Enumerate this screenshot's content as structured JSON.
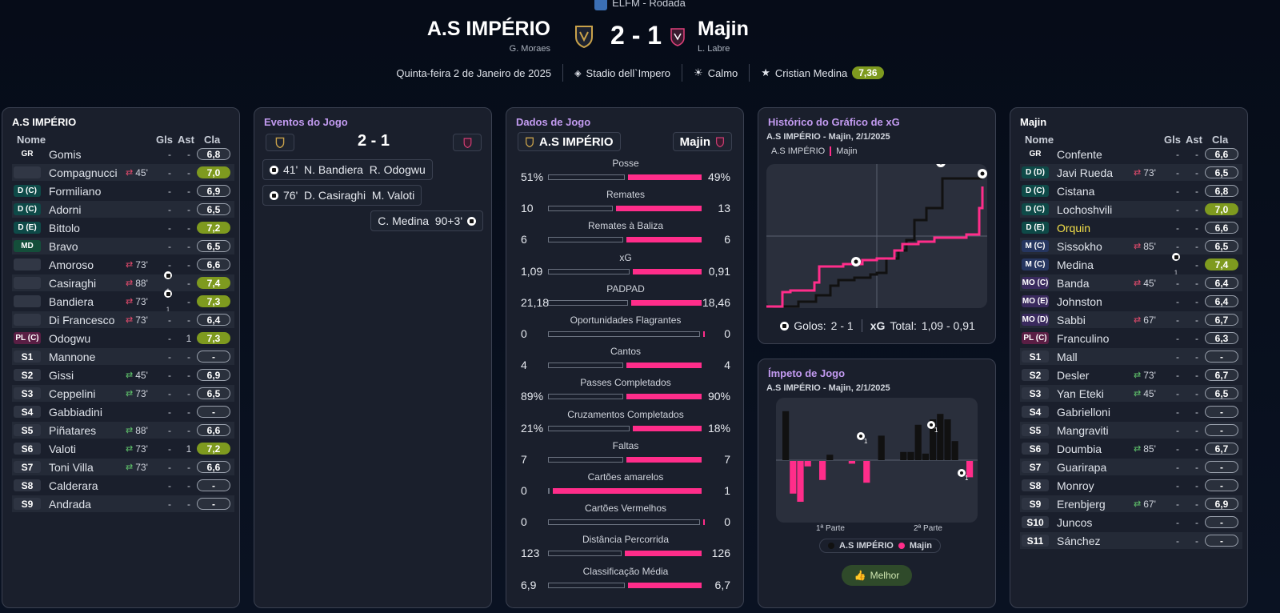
{
  "header": {
    "competition": "ELFM - Rodada",
    "home": {
      "name": "A.S IMPÉRIO",
      "manager": "G. Moraes"
    },
    "away": {
      "name": "Majin",
      "manager": "L. Labre"
    },
    "score": "2 - 1",
    "date": "Quinta-feira 2 de Janeiro de 2025",
    "stadium": "Stadio dell`Impero",
    "weather": "Calmo",
    "motm": "Cristian Medina",
    "motm_rating": "7,36"
  },
  "left": {
    "title": "A.S IMPÉRIO",
    "cols": {
      "name": "Nome",
      "gls": "Gls",
      "ast": "Ast",
      "cla": "Cla"
    },
    "rows": [
      {
        "pos": "GR",
        "name": "Gomis",
        "sub": "",
        "gls": "-",
        "ast": "-",
        "rating": "6,8",
        "g": false,
        "hl": false
      },
      {
        "pos": "",
        "name": "Compagnucci",
        "sub": "45'",
        "gls": "-",
        "ast": "-",
        "rating": "7,0",
        "g": true,
        "hl": false
      },
      {
        "pos": "D (C)",
        "name": "Formiliano",
        "sub": "",
        "gls": "-",
        "ast": "-",
        "rating": "6,9",
        "g": false,
        "hl": false
      },
      {
        "pos": "D (C)",
        "name": "Adorni",
        "sub": "",
        "gls": "-",
        "ast": "-",
        "rating": "6,5",
        "g": false,
        "hl": false
      },
      {
        "pos": "D (E)",
        "name": "Bittolo",
        "sub": "",
        "gls": "-",
        "ast": "-",
        "rating": "7,2",
        "g": true,
        "hl": false
      },
      {
        "pos": "MD",
        "name": "Bravo",
        "sub": "",
        "gls": "-",
        "ast": "-",
        "rating": "6,5",
        "g": false,
        "hl": false
      },
      {
        "pos": "",
        "name": "Amoroso",
        "sub": "73'",
        "gls": "-",
        "ast": "-",
        "rating": "6,6",
        "g": false,
        "hl": false
      },
      {
        "pos": "",
        "name": "Casiraghi",
        "sub": "88'",
        "gls": "1",
        "ast": "-",
        "rating": "7,4",
        "g": true,
        "hl": false
      },
      {
        "pos": "",
        "name": "Bandiera",
        "sub": "73'",
        "gls": "1",
        "ast": "-",
        "rating": "7,3",
        "g": true,
        "hl": false
      },
      {
        "pos": "",
        "name": "Di Francesco",
        "sub": "73'",
        "gls": "-",
        "ast": "-",
        "rating": "6,4",
        "g": false,
        "hl": false
      },
      {
        "pos": "PL (C)",
        "name": "Odogwu",
        "sub": "",
        "gls": "-",
        "ast": "1",
        "rating": "7,3",
        "g": true,
        "hl": false
      },
      {
        "pos": "S1",
        "name": "Mannone",
        "sub": "",
        "gls": "-",
        "ast": "-",
        "rating": "-",
        "g": false,
        "hl": false
      },
      {
        "pos": "S2",
        "name": "Gissi",
        "sub": "45'",
        "gls": "-",
        "ast": "-",
        "rating": "6,9",
        "g": false,
        "hl": false
      },
      {
        "pos": "S3",
        "name": "Ceppelini",
        "sub": "73'",
        "gls": "-",
        "ast": "-",
        "rating": "6,5",
        "g": false,
        "hl": false
      },
      {
        "pos": "S4",
        "name": "Gabbiadini",
        "sub": "",
        "gls": "-",
        "ast": "-",
        "rating": "-",
        "g": false,
        "hl": false
      },
      {
        "pos": "S5",
        "name": "Piñatares",
        "sub": "88'",
        "gls": "-",
        "ast": "-",
        "rating": "6,6",
        "g": false,
        "hl": false
      },
      {
        "pos": "S6",
        "name": "Valoti",
        "sub": "73'",
        "gls": "-",
        "ast": "1",
        "rating": "7,2",
        "g": true,
        "hl": false
      },
      {
        "pos": "S7",
        "name": "Toni Villa",
        "sub": "73'",
        "gls": "-",
        "ast": "-",
        "rating": "6,6",
        "g": false,
        "hl": false
      },
      {
        "pos": "S8",
        "name": "Calderara",
        "sub": "",
        "gls": "-",
        "ast": "-",
        "rating": "-",
        "g": false,
        "hl": false
      },
      {
        "pos": "S9",
        "name": "Andrada",
        "sub": "",
        "gls": "-",
        "ast": "-",
        "rating": "-",
        "g": false,
        "hl": false
      }
    ]
  },
  "events": {
    "title": "Eventos do Jogo",
    "score": "2 - 1",
    "list": [
      {
        "text": "41'  N. Bandiera  R. Odogwu",
        "side": "home"
      },
      {
        "text": "76'  D. Casiraghi  M. Valoti",
        "side": "home"
      },
      {
        "text": "C. Medina  90+3'",
        "side": "away"
      }
    ]
  },
  "stats": {
    "title": "Dados de Jogo",
    "home": "A.S IMPÉRIO",
    "away": "Majin",
    "rows": [
      {
        "name": "Posse",
        "l": "51%",
        "r": "49%",
        "lw": 51,
        "rw": 49
      },
      {
        "name": "Remates",
        "l": "10",
        "r": "13",
        "lw": 43,
        "rw": 57
      },
      {
        "name": "Remates à Baliza",
        "l": "6",
        "r": "6",
        "lw": 50,
        "rw": 50
      },
      {
        "name": "xG",
        "l": "1,09",
        "r": "0,91",
        "lw": 54,
        "rw": 46
      },
      {
        "name": "PADPAD",
        "l": "21,18",
        "r": "18,46",
        "lw": 53,
        "rw": 47
      },
      {
        "name": "Oportunidades Flagrantes",
        "l": "0",
        "r": "0",
        "lw": 100,
        "rw": 1
      },
      {
        "name": "Cantos",
        "l": "4",
        "r": "4",
        "lw": 50,
        "rw": 50
      },
      {
        "name": "Passes Completados",
        "l": "89%",
        "r": "90%",
        "lw": 50,
        "rw": 50
      },
      {
        "name": "Cruzamentos Completados",
        "l": "21%",
        "r": "18%",
        "lw": 54,
        "rw": 46
      },
      {
        "name": "Faltas",
        "l": "7",
        "r": "7",
        "lw": 50,
        "rw": 50
      },
      {
        "name": "Cartões amarelos",
        "l": "0",
        "r": "1",
        "lw": 2,
        "rw": 98
      },
      {
        "name": "Cartões Vermelhos",
        "l": "0",
        "r": "0",
        "lw": 100,
        "rw": 1
      },
      {
        "name": "Distância Percorrida",
        "l": "123",
        "r": "126",
        "lw": 49,
        "rw": 51
      },
      {
        "name": "Classificação Média",
        "l": "6,9",
        "r": "6,7",
        "lw": 51,
        "rw": 49
      }
    ]
  },
  "xg": {
    "title": "Histórico do Gráfico de xG",
    "subtitle": "A.S IMPÉRIO - Majin, 2/1/2025",
    "legend_home": "A.S IMPÉRIO",
    "legend_away": "Majin",
    "footer_goals_label": "Golos:",
    "footer_goals": "2 - 1",
    "footer_xg_label": "xG",
    "footer_total_label": "Total:",
    "footer_xg": "1,09  -  0,91"
  },
  "momentum": {
    "title": "Ímpeto de Jogo",
    "subtitle": "A.S IMPÉRIO - Majin, 2/1/2025",
    "half1": "1ª Parte",
    "half2": "2ª Parte",
    "legend_home": "A.S IMPÉRIO",
    "legend_away": "Majin",
    "button": "Melhor",
    "home_values": [
      0.9,
      0,
      0,
      0,
      0,
      0,
      0.1,
      0,
      0,
      0,
      0,
      0,
      0,
      0.45,
      0,
      0,
      0.15,
      0.15,
      0.65,
      0.12,
      0.75,
      0.85,
      0.75,
      0.35,
      0,
      0
    ],
    "away_values": [
      0,
      0.6,
      0.75,
      0.1,
      0,
      0.35,
      0,
      0,
      0,
      0.05,
      0,
      0.4,
      0,
      0,
      0,
      0,
      0,
      0,
      0,
      0,
      0,
      0,
      0,
      0,
      0,
      0.3
    ]
  },
  "right": {
    "title": "Majin",
    "cols": {
      "name": "Nome",
      "gls": "Gls",
      "ast": "Ast",
      "cla": "Cla"
    },
    "rows": [
      {
        "pos": "GR",
        "name": "Confente",
        "sub": "",
        "gls": "-",
        "ast": "-",
        "rating": "6,6",
        "g": false,
        "hl": false
      },
      {
        "pos": "D (D)",
        "name": "Javi Rueda",
        "sub": "73'",
        "gls": "-",
        "ast": "-",
        "rating": "6,5",
        "g": false,
        "hl": false
      },
      {
        "pos": "D (C)",
        "name": "Cistana",
        "sub": "",
        "gls": "-",
        "ast": "-",
        "rating": "6,8",
        "g": false,
        "hl": false
      },
      {
        "pos": "D (C)",
        "name": "Lochoshvili",
        "sub": "",
        "gls": "-",
        "ast": "-",
        "rating": "7,0",
        "g": true,
        "hl": false
      },
      {
        "pos": "D (E)",
        "name": "Orquin",
        "sub": "",
        "gls": "-",
        "ast": "-",
        "rating": "6,6",
        "g": false,
        "hl": true
      },
      {
        "pos": "M (C)",
        "name": "Sissokho",
        "sub": "85'",
        "gls": "-",
        "ast": "-",
        "rating": "6,5",
        "g": false,
        "hl": false
      },
      {
        "pos": "M (C)",
        "name": "Medina",
        "sub": "",
        "gls": "1",
        "ast": "-",
        "rating": "7,4",
        "g": true,
        "hl": false
      },
      {
        "pos": "MO (C)",
        "name": "Banda",
        "sub": "45'",
        "gls": "-",
        "ast": "-",
        "rating": "6,4",
        "g": false,
        "hl": false
      },
      {
        "pos": "MO (E)",
        "name": "Johnston",
        "sub": "",
        "gls": "-",
        "ast": "-",
        "rating": "6,4",
        "g": false,
        "hl": false
      },
      {
        "pos": "MO (D)",
        "name": "Sabbi",
        "sub": "67'",
        "gls": "-",
        "ast": "-",
        "rating": "6,7",
        "g": false,
        "hl": false
      },
      {
        "pos": "PL (C)",
        "name": "Franculino",
        "sub": "",
        "gls": "-",
        "ast": "-",
        "rating": "6,3",
        "g": false,
        "hl": false
      },
      {
        "pos": "S1",
        "name": "Mall",
        "sub": "",
        "gls": "-",
        "ast": "-",
        "rating": "-",
        "g": false,
        "hl": false
      },
      {
        "pos": "S2",
        "name": "Desler",
        "sub": "73'",
        "gls": "-",
        "ast": "-",
        "rating": "6,7",
        "g": false,
        "hl": false
      },
      {
        "pos": "S3",
        "name": "Yan Eteki",
        "sub": "45'",
        "gls": "-",
        "ast": "-",
        "rating": "6,5",
        "g": false,
        "hl": false
      },
      {
        "pos": "S4",
        "name": "Gabrielloni",
        "sub": "",
        "gls": "-",
        "ast": "-",
        "rating": "-",
        "g": false,
        "hl": false
      },
      {
        "pos": "S5",
        "name": "Mangraviti",
        "sub": "",
        "gls": "-",
        "ast": "-",
        "rating": "-",
        "g": false,
        "hl": false
      },
      {
        "pos": "S6",
        "name": "Doumbia",
        "sub": "85'",
        "gls": "-",
        "ast": "-",
        "rating": "6,7",
        "g": false,
        "hl": false
      },
      {
        "pos": "S7",
        "name": "Guarirapa",
        "sub": "",
        "gls": "-",
        "ast": "-",
        "rating": "-",
        "g": false,
        "hl": false
      },
      {
        "pos": "S8",
        "name": "Monroy",
        "sub": "",
        "gls": "-",
        "ast": "-",
        "rating": "-",
        "g": false,
        "hl": false
      },
      {
        "pos": "S9",
        "name": "Erenbjerg",
        "sub": "67'",
        "gls": "-",
        "ast": "-",
        "rating": "6,9",
        "g": false,
        "hl": false
      },
      {
        "pos": "S10",
        "name": "Juncos",
        "sub": "",
        "gls": "-",
        "ast": "-",
        "rating": "-",
        "g": false,
        "hl": false
      },
      {
        "pos": "S11",
        "name": "Sánchez",
        "sub": "",
        "gls": "-",
        "ast": "-",
        "rating": "-",
        "g": false,
        "hl": false
      }
    ]
  },
  "colors": {
    "away": "#ff2d8a",
    "home": "#111111",
    "rating_good": "#7e9a1f",
    "accent": "#c39bf1"
  }
}
